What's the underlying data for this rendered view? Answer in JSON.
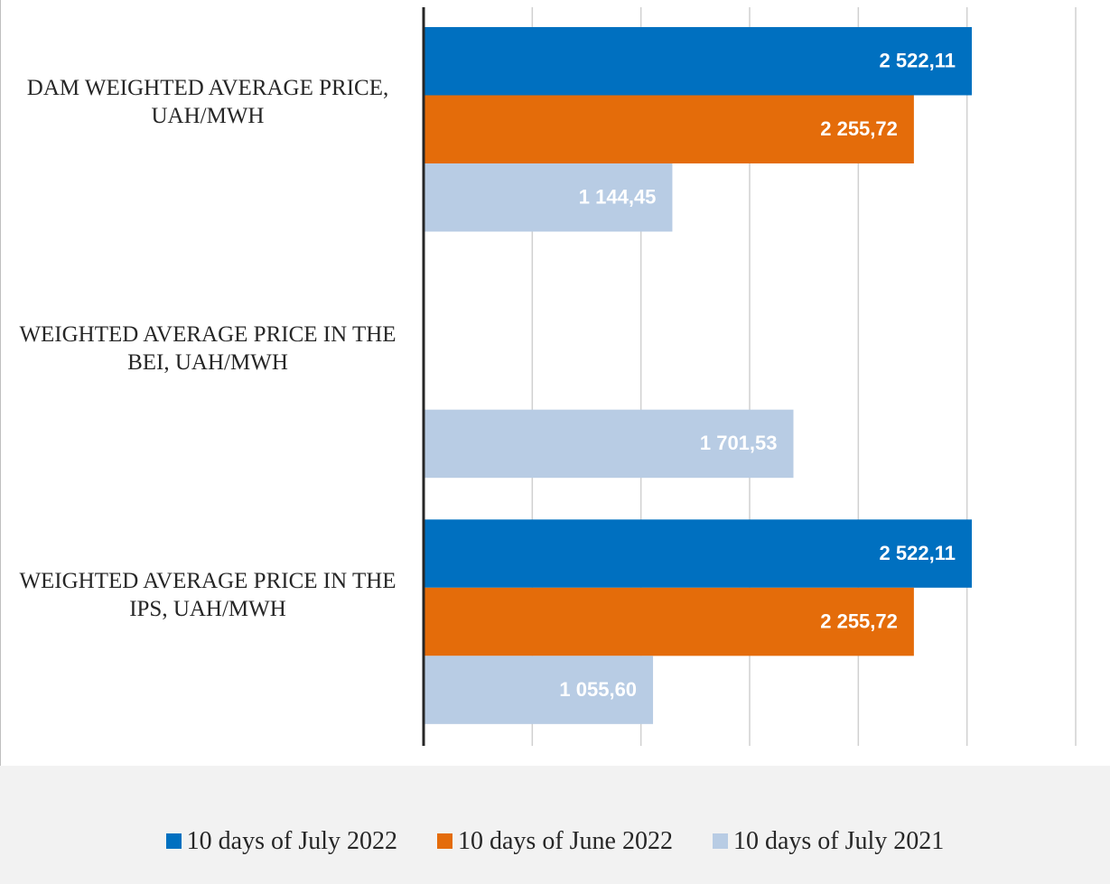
{
  "chart_data": {
    "type": "barh",
    "categories": [
      "DAM WEIGHTED AVERAGE PRICE, UAH/MWH",
      "WEIGHTED AVERAGE PRICE IN THE BEI, UAH/MWH",
      "WEIGHTED AVERAGE PRICE IN THE IPS, UAH/MWH"
    ],
    "series": [
      {
        "name": "10 days of July 2022",
        "color": "#0070c0",
        "values": [
          2522.11,
          null,
          2522.11
        ],
        "value_labels": [
          "2 522,11",
          null,
          "2 522,11"
        ]
      },
      {
        "name": "10 days of June 2022",
        "color": "#e46c0a",
        "values": [
          2255.72,
          null,
          2255.72
        ],
        "value_labels": [
          "2 255,72",
          null,
          "2 255,72"
        ]
      },
      {
        "name": "10 days of July 2021",
        "color": "#b8cce4",
        "values": [
          1144.45,
          1701.53,
          1055.6
        ],
        "value_labels": [
          "1 144,45",
          "1 701,53",
          "1 055,60"
        ]
      }
    ],
    "xlim": [
      0,
      3000
    ],
    "xticks": [
      0,
      500,
      {
        "value": 1000,
        "label": "1 000"
      },
      {
        "value": 1500,
        "label": "1 500"
      },
      {
        "value": 2000,
        "label": "2 000"
      },
      {
        "value": 2500,
        "label": "2 500"
      },
      {
        "value": 3000,
        "label": "3 000"
      }
    ],
    "grid": true,
    "legend": "bottom"
  }
}
